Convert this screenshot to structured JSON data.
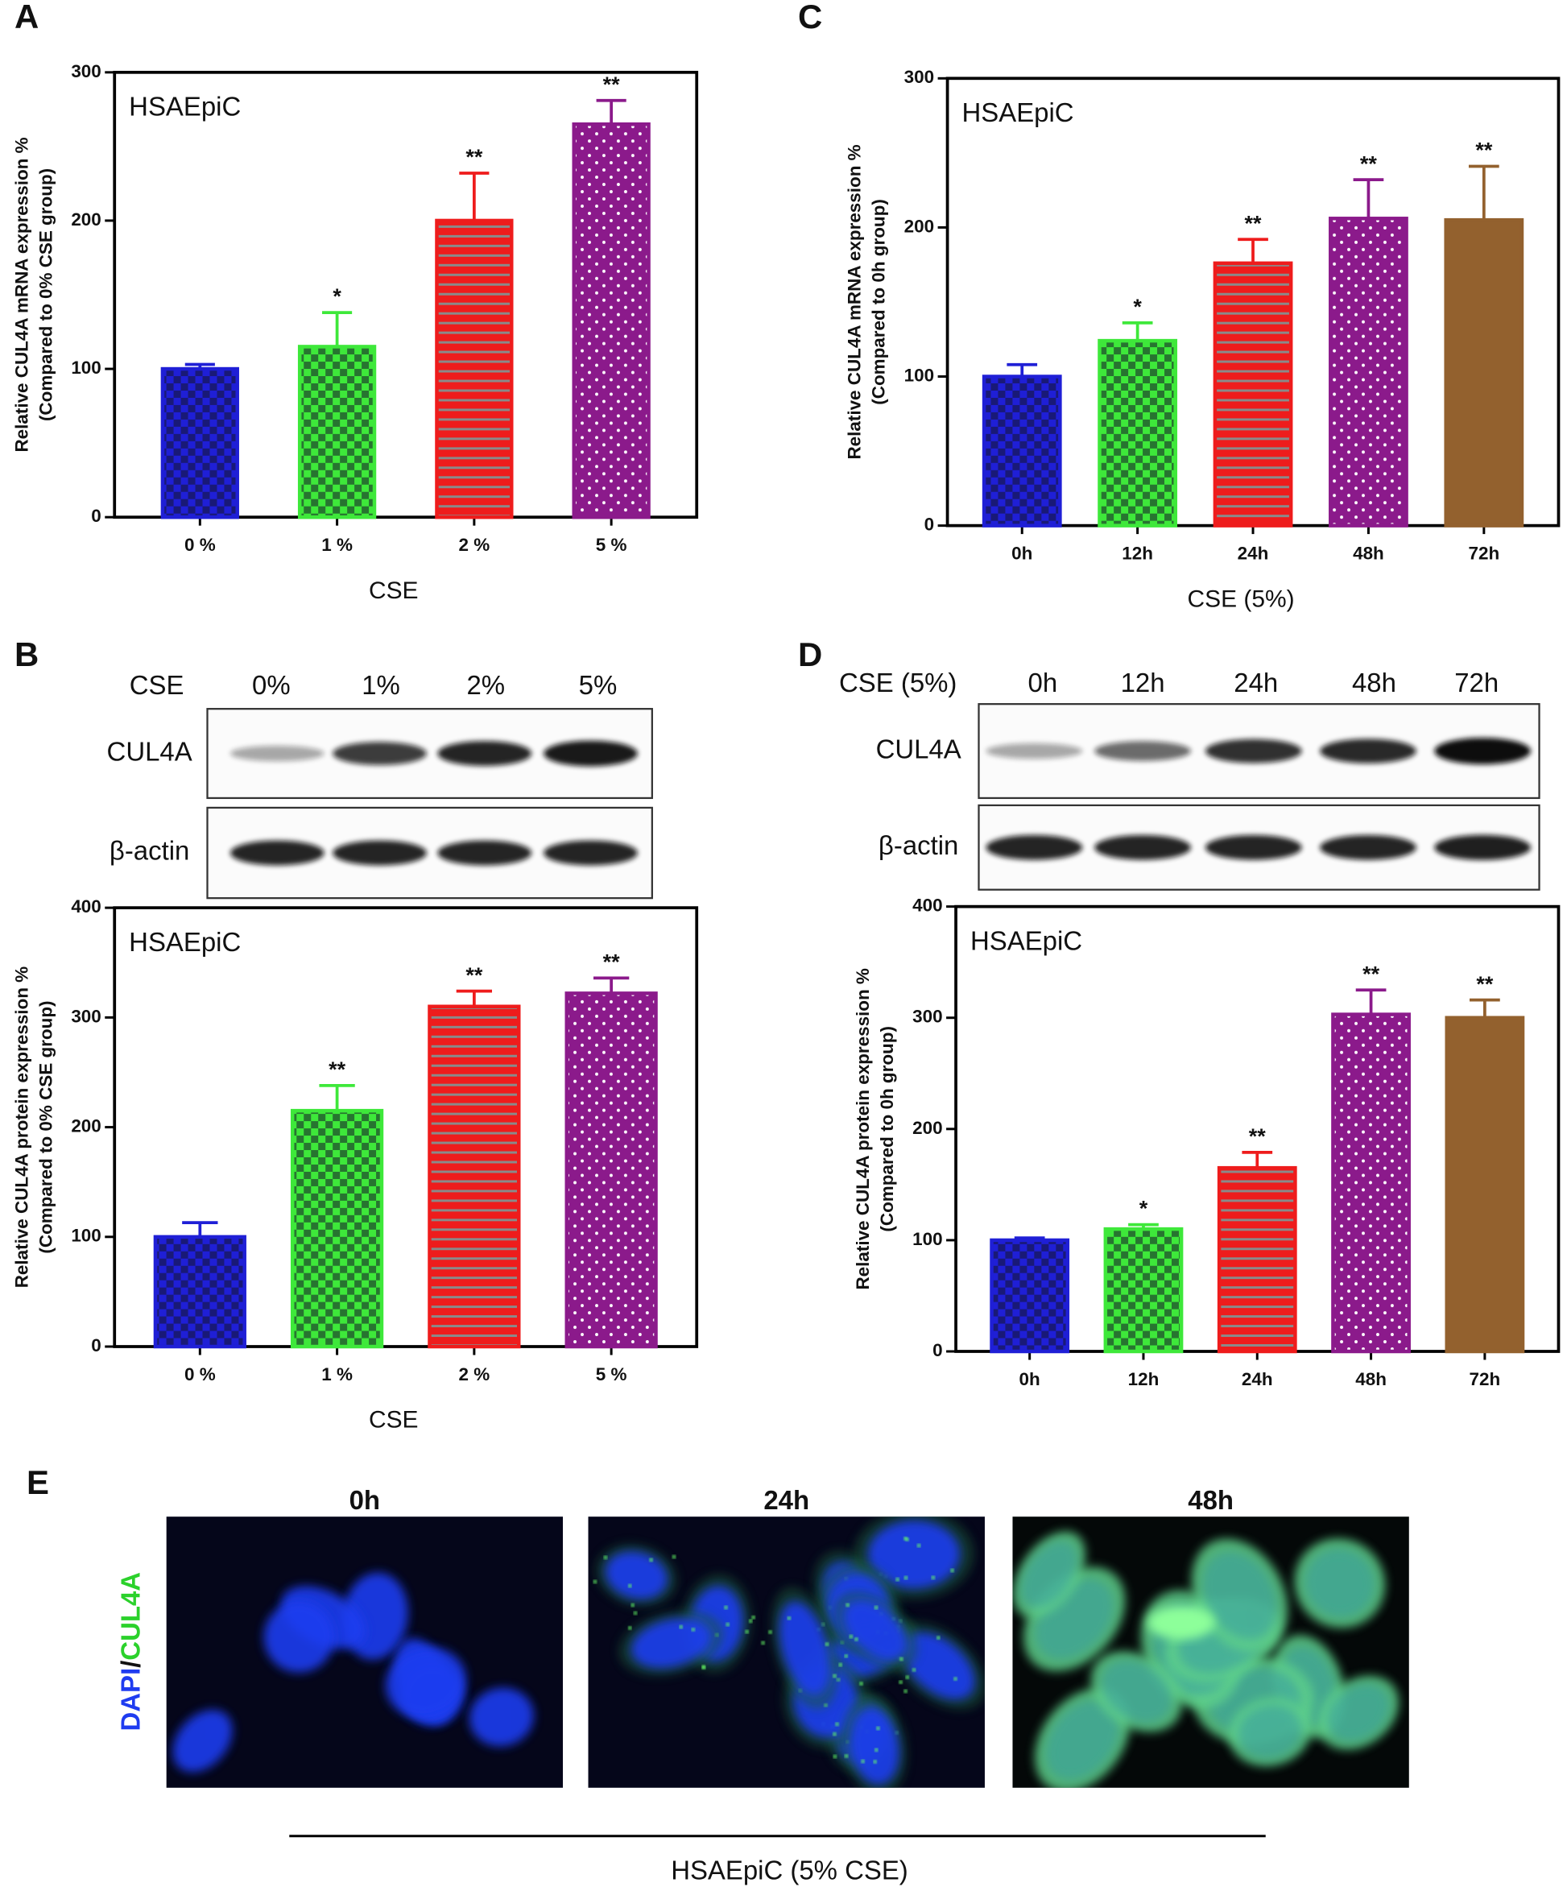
{
  "chart_data": [
    {
      "type": "bar",
      "panel": "A",
      "annotation": "HSAEpiC",
      "ylabel": [
        "Relative CUL4A  mRNA expression %",
        "(Compared to 0% CSE group)"
      ],
      "xlabel": "CSE",
      "categories": [
        "0 %",
        "1 %",
        "2 %",
        "5 %"
      ],
      "values": [
        100,
        115,
        200,
        265
      ],
      "errors": [
        3,
        23,
        32,
        16
      ],
      "significance": [
        null,
        "*",
        "**",
        "**"
      ],
      "colors": [
        "#1f1fd6",
        "#3ee83a",
        "#ee1c1c",
        "#8b1a8b"
      ],
      "patterns": [
        "checker",
        "checker",
        "hlines",
        "dots"
      ],
      "ylim": [
        0,
        300
      ],
      "yticks": [
        0,
        100,
        200,
        300
      ]
    },
    {
      "type": "bar",
      "panel": "B",
      "annotation": "HSAEpiC",
      "ylabel": [
        "Relative CUL4A  protein expression %",
        "(Compared to 0% CSE group)"
      ],
      "xlabel": "CSE",
      "categories": [
        "0 %",
        "1 %",
        "2 %",
        "5 %"
      ],
      "values": [
        100,
        215,
        310,
        322
      ],
      "errors": [
        13,
        23,
        14,
        14
      ],
      "significance": [
        null,
        "**",
        "**",
        "**"
      ],
      "colors": [
        "#1f1fd6",
        "#3ee83a",
        "#ee1c1c",
        "#8b1a8b"
      ],
      "patterns": [
        "checker",
        "checker",
        "hlines",
        "dots"
      ],
      "ylim": [
        0,
        400
      ],
      "yticks": [
        0,
        100,
        200,
        300,
        400
      ]
    },
    {
      "type": "bar",
      "panel": "C",
      "annotation": "HSAEpiC",
      "ylabel": [
        "Relative CUL4A  mRNA expression %",
        "(Compared to 0h group)"
      ],
      "xlabel": "CSE (5%)",
      "categories": [
        "0h",
        "12h",
        "24h",
        "48h",
        "72h"
      ],
      "values": [
        100,
        124,
        176,
        206,
        205
      ],
      "errors": [
        8,
        12,
        16,
        26,
        36
      ],
      "significance": [
        null,
        "*",
        "**",
        "**",
        "**"
      ],
      "colors": [
        "#1f1fd6",
        "#3ee83a",
        "#ee1c1c",
        "#8b1a8b",
        "#93612e"
      ],
      "patterns": [
        "checker",
        "checker",
        "hlines",
        "dots",
        "solid"
      ],
      "ylim": [
        0,
        300
      ],
      "yticks": [
        0,
        100,
        200,
        300
      ]
    },
    {
      "type": "bar",
      "panel": "D",
      "annotation": "HSAEpiC",
      "ylabel": [
        "Relative CUL4A  protein expression %",
        "(Compared to 0h group)"
      ],
      "xlabel": null,
      "categories": [
        "0h",
        "12h",
        "24h",
        "48h",
        "72h"
      ],
      "values": [
        100,
        110,
        165,
        303,
        300
      ],
      "errors": [
        2,
        4,
        14,
        22,
        16
      ],
      "significance": [
        null,
        "*",
        "**",
        "**",
        "**"
      ],
      "colors": [
        "#1f1fd6",
        "#3ee83a",
        "#ee1c1c",
        "#8b1a8b",
        "#93612e"
      ],
      "patterns": [
        "checker",
        "checker",
        "hlines",
        "dots",
        "solid"
      ],
      "ylim": [
        0,
        400
      ],
      "yticks": [
        0,
        100,
        200,
        300,
        400
      ]
    }
  ],
  "blots": [
    {
      "header": "CSE",
      "lanes": [
        "0%",
        "1%",
        "2%",
        "5%"
      ],
      "rows": [
        "CUL4A",
        "β-actin"
      ]
    },
    {
      "header": "CSE (5%)",
      "lanes": [
        "0h",
        "12h",
        "24h",
        "48h",
        "72h"
      ],
      "rows": [
        "CUL4A",
        "β-actin"
      ]
    }
  ],
  "figure_e": {
    "panel": "E",
    "titles": [
      "0h",
      "24h",
      "48h"
    ],
    "stain_label": [
      "DAPI",
      "/",
      "CUL4A"
    ],
    "caption": "HSAEpiC (5% CSE)"
  }
}
